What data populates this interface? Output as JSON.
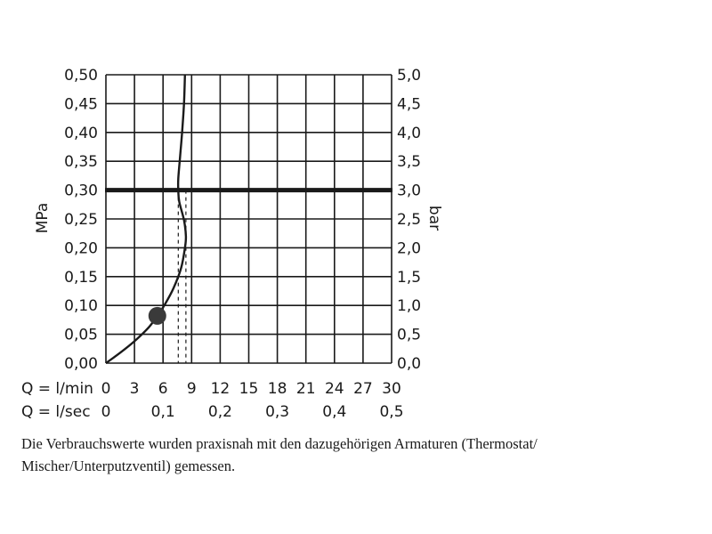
{
  "chart_data": {
    "type": "line",
    "left_axis": {
      "label": "MPa",
      "ylim": [
        0,
        0.5
      ],
      "ticks": [
        0,
        0.05,
        0.1,
        0.15,
        0.2,
        0.25,
        0.3,
        0.35,
        0.4,
        0.45,
        0.5
      ],
      "tick_labels": [
        "0,00",
        "0,05",
        "0,10",
        "0,15",
        "0,20",
        "0,25",
        "0,30",
        "0,35",
        "0,40",
        "0,45",
        "0,50"
      ]
    },
    "right_axis": {
      "label": "bar",
      "ylim": [
        0,
        5
      ],
      "tick_labels": [
        "0,0",
        "0,5",
        "1,0",
        "1,5",
        "2,0",
        "2,5",
        "3,0",
        "3,5",
        "4,0",
        "4,5",
        "5,0"
      ]
    },
    "x_axis_lmin": {
      "label": "Q = l/min",
      "xlim": [
        0,
        30
      ],
      "ticks": [
        0,
        3,
        6,
        9,
        12,
        15,
        18,
        21,
        24,
        27,
        30
      ],
      "tick_labels": [
        "0",
        "3",
        "6",
        "9",
        "12",
        "15",
        "18",
        "21",
        "24",
        "27",
        "30"
      ]
    },
    "x_axis_lsec": {
      "label": "Q = l/sec",
      "ticks": [
        0,
        0.1,
        0.2,
        0.3,
        0.4,
        0.5
      ],
      "tick_labels": [
        "0",
        "0,1",
        "0,2",
        "0,3",
        "0,4",
        "0,5"
      ]
    },
    "grid": true,
    "series": [
      {
        "x": [
          0,
          1.5,
          3,
          4.5,
          5.4,
          6.2,
          7.1,
          7.9,
          8.3,
          8.4,
          8.2,
          7.7,
          7.6,
          7.6,
          7.8,
          8.0,
          8.2,
          8.3
        ],
        "y": [
          0,
          0.018,
          0.038,
          0.062,
          0.082,
          0.102,
          0.13,
          0.165,
          0.2,
          0.22,
          0.248,
          0.28,
          0.3,
          0.32,
          0.36,
          0.4,
          0.45,
          0.5
        ]
      }
    ],
    "reference_line_y": 0.3,
    "marker_point": {
      "x": 5.4,
      "y": 0.082
    },
    "dashed_lines_x": [
      7.6,
      8.4
    ]
  },
  "caption": {
    "line1": "Die Verbrauchswerte wurden praxisnah mit den dazugehörigen Armaturen (Thermostat/",
    "line2": "Mischer/Unterputzventil) gemessen."
  }
}
